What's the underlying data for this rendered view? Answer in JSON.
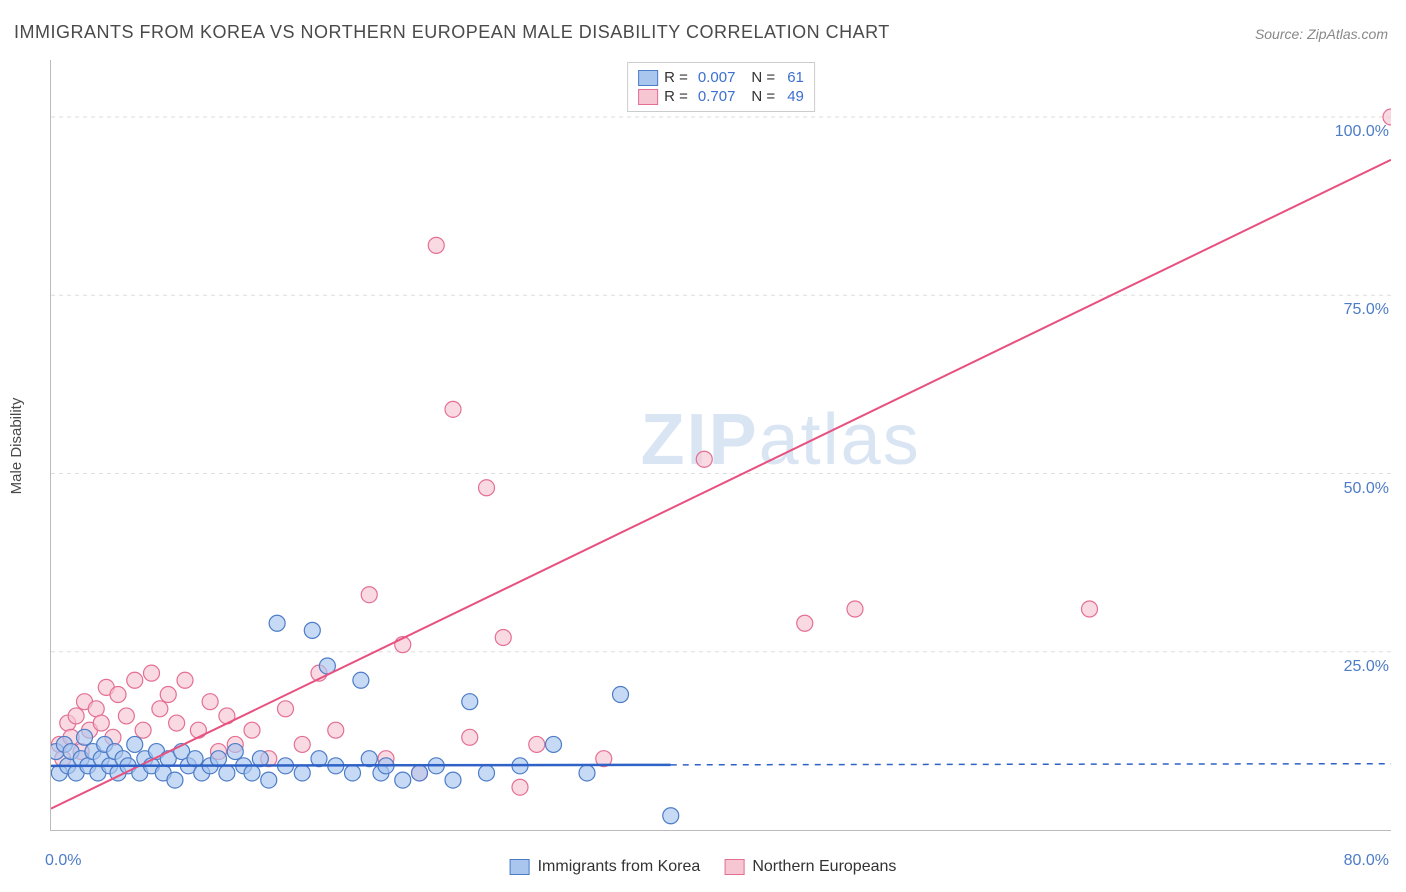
{
  "title": "IMMIGRANTS FROM KOREA VS NORTHERN EUROPEAN MALE DISABILITY CORRELATION CHART",
  "source": "Source: ZipAtlas.com",
  "y_axis_label": "Male Disability",
  "watermark_bold": "ZIP",
  "watermark_light": "atlas",
  "plot": {
    "xlim": [
      0,
      80
    ],
    "ylim": [
      0,
      108
    ],
    "xticks": [
      {
        "val": 0,
        "label": "0.0%"
      },
      {
        "val": 80,
        "label": "80.0%"
      }
    ],
    "yticks": [
      {
        "val": 25,
        "label": "25.0%"
      },
      {
        "val": 50,
        "label": "50.0%"
      },
      {
        "val": 75,
        "label": "75.0%"
      },
      {
        "val": 100,
        "label": "100.0%"
      }
    ],
    "gridline_color": "#dddddd",
    "axis_color": "#bbbbbb",
    "background_color": "#ffffff"
  },
  "series": {
    "blue": {
      "name": "Immigrants from Korea",
      "marker_fill": "#a9c6ef",
      "marker_stroke": "#4d7cc7",
      "marker_opacity": 0.65,
      "marker_radius": 8,
      "line_color": "#2f62c7",
      "line_width": 2.5,
      "R": "0.007",
      "N": "61",
      "trend": {
        "x1": 0,
        "y1": 9,
        "x2": 80,
        "y2": 9.3,
        "solid_until_x": 37
      },
      "points": [
        [
          0.3,
          11
        ],
        [
          0.5,
          8
        ],
        [
          0.8,
          12
        ],
        [
          1,
          9
        ],
        [
          1.2,
          11
        ],
        [
          1.5,
          8
        ],
        [
          1.8,
          10
        ],
        [
          2,
          13
        ],
        [
          2.2,
          9
        ],
        [
          2.5,
          11
        ],
        [
          2.8,
          8
        ],
        [
          3,
          10
        ],
        [
          3.2,
          12
        ],
        [
          3.5,
          9
        ],
        [
          3.8,
          11
        ],
        [
          4,
          8
        ],
        [
          4.3,
          10
        ],
        [
          4.6,
          9
        ],
        [
          5,
          12
        ],
        [
          5.3,
          8
        ],
        [
          5.6,
          10
        ],
        [
          6,
          9
        ],
        [
          6.3,
          11
        ],
        [
          6.7,
          8
        ],
        [
          7,
          10
        ],
        [
          7.4,
          7
        ],
        [
          7.8,
          11
        ],
        [
          8.2,
          9
        ],
        [
          8.6,
          10
        ],
        [
          9,
          8
        ],
        [
          9.5,
          9
        ],
        [
          10,
          10
        ],
        [
          10.5,
          8
        ],
        [
          11,
          11
        ],
        [
          11.5,
          9
        ],
        [
          12,
          8
        ],
        [
          12.5,
          10
        ],
        [
          13,
          7
        ],
        [
          13.5,
          29
        ],
        [
          14,
          9
        ],
        [
          15,
          8
        ],
        [
          15.6,
          28
        ],
        [
          16,
          10
        ],
        [
          16.5,
          23
        ],
        [
          17,
          9
        ],
        [
          18,
          8
        ],
        [
          18.5,
          21
        ],
        [
          19,
          10
        ],
        [
          19.7,
          8
        ],
        [
          20,
          9
        ],
        [
          21,
          7
        ],
        [
          22,
          8
        ],
        [
          23,
          9
        ],
        [
          24,
          7
        ],
        [
          25,
          18
        ],
        [
          26,
          8
        ],
        [
          28,
          9
        ],
        [
          30,
          12
        ],
        [
          32,
          8
        ],
        [
          34,
          19
        ],
        [
          37,
          2
        ]
      ]
    },
    "pink": {
      "name": "Northern Europeans",
      "marker_fill": "#f6c6d2",
      "marker_stroke": "#e46f93",
      "marker_opacity": 0.65,
      "marker_radius": 8,
      "line_color": "#e8517f",
      "line_width": 2,
      "R": "0.707",
      "N": "49",
      "trend": {
        "x1": 0,
        "y1": 3,
        "x2": 80,
        "y2": 94
      },
      "points": [
        [
          0.5,
          12
        ],
        [
          0.7,
          10
        ],
        [
          1,
          15
        ],
        [
          1.2,
          13
        ],
        [
          1.5,
          16
        ],
        [
          1.8,
          11
        ],
        [
          2,
          18
        ],
        [
          2.3,
          14
        ],
        [
          2.7,
          17
        ],
        [
          3,
          15
        ],
        [
          3.3,
          20
        ],
        [
          3.7,
          13
        ],
        [
          4,
          19
        ],
        [
          4.5,
          16
        ],
        [
          5,
          21
        ],
        [
          5.5,
          14
        ],
        [
          6,
          22
        ],
        [
          6.5,
          17
        ],
        [
          7,
          19
        ],
        [
          7.5,
          15
        ],
        [
          8,
          21
        ],
        [
          8.8,
          14
        ],
        [
          9.5,
          18
        ],
        [
          10,
          11
        ],
        [
          10.5,
          16
        ],
        [
          11,
          12
        ],
        [
          12,
          14
        ],
        [
          13,
          10
        ],
        [
          14,
          17
        ],
        [
          15,
          12
        ],
        [
          16,
          22
        ],
        [
          17,
          14
        ],
        [
          19,
          33
        ],
        [
          20,
          10
        ],
        [
          21,
          26
        ],
        [
          22,
          8
        ],
        [
          23,
          82
        ],
        [
          24,
          59
        ],
        [
          25,
          13
        ],
        [
          26,
          48
        ],
        [
          27,
          27
        ],
        [
          28,
          6
        ],
        [
          29,
          12
        ],
        [
          33,
          10
        ],
        [
          39,
          52
        ],
        [
          45,
          29
        ],
        [
          48,
          31
        ],
        [
          62,
          31
        ],
        [
          80,
          100
        ]
      ]
    }
  },
  "legend_top": {
    "r_prefix": "R =",
    "n_prefix": "N ="
  },
  "legend_bottom": {
    "items": [
      {
        "key": "blue",
        "label": "Immigrants from Korea"
      },
      {
        "key": "pink",
        "label": "Northern Europeans"
      }
    ]
  }
}
